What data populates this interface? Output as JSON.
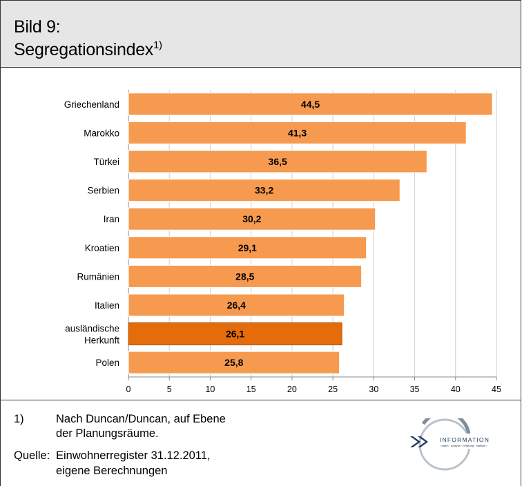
{
  "header": {
    "title_line1": "Bild 9:",
    "title_line2": "Segregationsindex",
    "title_sup": "1)"
  },
  "chart_data": {
    "type": "bar",
    "orientation": "horizontal",
    "categories": [
      "Griechenland",
      "Marokko",
      "Türkei",
      "Serbien",
      "Iran",
      "Kroatien",
      "Rumänien",
      "Italien",
      "ausländische Herkunft",
      "Polen"
    ],
    "values": [
      44.5,
      41.3,
      36.5,
      33.2,
      30.2,
      29.1,
      28.5,
      26.4,
      26.1,
      25.8
    ],
    "value_labels": [
      "44,5",
      "41,3",
      "36,5",
      "33,2",
      "30,2",
      "29,1",
      "28,5",
      "26,4",
      "26,1",
      "25,8"
    ],
    "highlight_category": "ausländische Herkunft",
    "xlim": [
      0,
      45
    ],
    "x_ticks": [
      0,
      5,
      10,
      15,
      20,
      25,
      30,
      35,
      40,
      45
    ],
    "grid": true,
    "title": "",
    "xlabel": "",
    "ylabel": "",
    "colors": {
      "bar": "#f69a4f",
      "bar_highlight": "#e46c0a",
      "bar_edge": "#ffffff",
      "grid": "#cfcfcf"
    }
  },
  "footer": {
    "note_marker": "1)",
    "note_line1": "Nach Duncan/Duncan, auf Ebene",
    "note_line2": "der Planungsräume.",
    "source_label": "Quelle:",
    "source_line1": "Einwohnerregister 31.12.2011,",
    "source_line2": "eigene Berechnungen"
  },
  "logo": {
    "icon": "chevron-logo-icon",
    "text": "INFORMATION",
    "subtext": "› daten · analyse · beratung · statistik ›",
    "color": "#1c3a5e"
  }
}
